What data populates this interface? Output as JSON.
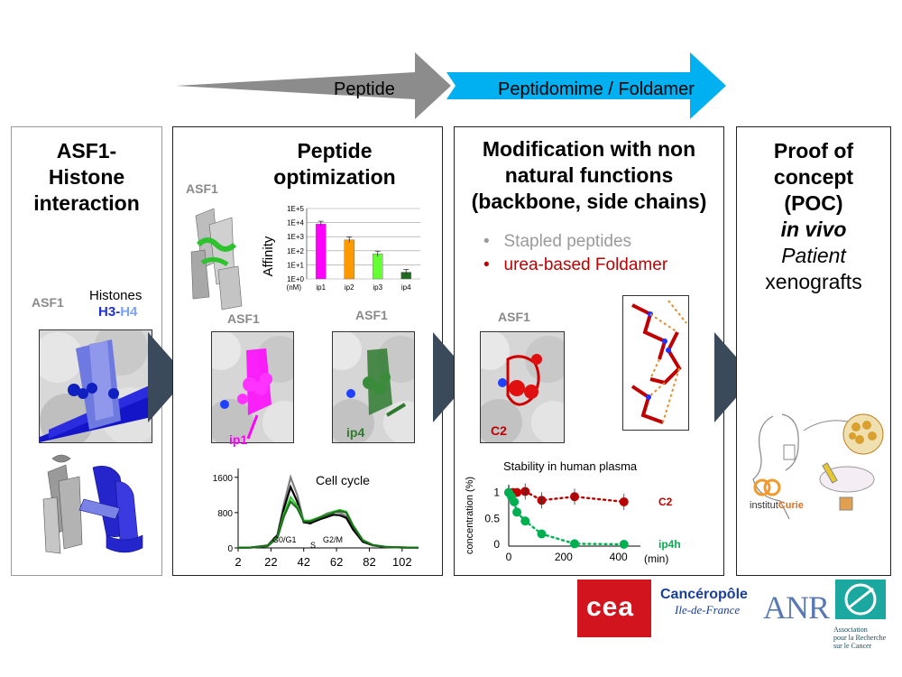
{
  "arrows": {
    "peptide": "Peptide",
    "peptidomimetic": "Peptidomime / Foldamer"
  },
  "panel1": {
    "title": "ASF1-\nHistone\ninteraction",
    "asf1_label": "ASF1",
    "histones_label": "Histones",
    "h3": "H3",
    "dash": "-",
    "h4": "H4"
  },
  "panel2": {
    "title": "Peptide\noptimization",
    "asf1_top": "ASF1",
    "asf1_left": "ASF1",
    "asf1_right": "ASF1",
    "ip1_label": "ip1",
    "ip4_label": "ip4"
  },
  "panel3": {
    "title": "Modification with non\nnatural functions\n(backbone, side chains)",
    "bullets": [
      {
        "text": "Stapled peptides",
        "color": "#9a9a9a"
      },
      {
        "text": "urea-based Foldamer",
        "color": "#c00000"
      }
    ],
    "asf1_label": "ASF1",
    "c2_label": "C2"
  },
  "panel4": {
    "line1": "Proof of",
    "line2": "concept",
    "line3": "(POC)",
    "line4": "in vivo",
    "line5": "Patient",
    "line6": "xenografts",
    "curie_text": "institut",
    "curie_bold": "Curie"
  },
  "logos": {
    "cea": "cea",
    "canceropole_1": "Cancéropôle",
    "canceropole_2": "Ile-de-France",
    "anr": "ANR",
    "arc_1": "Association",
    "arc_2": "pour la Recherche",
    "arc_3": "sur le Cancer"
  },
  "colors": {
    "arrow_gray": "#8c8c8c",
    "arrow_blue": "#00b0f0",
    "chevron": "#3b4a5a",
    "magenta": "#ff00ff",
    "orange": "#ff9900",
    "green_light": "#66ff33",
    "green_dark": "#1e6e1e",
    "red": "#c00000",
    "green_plasma": "#00b050"
  },
  "chart_data": [
    {
      "type": "bar",
      "ylabel": "Affinity",
      "yunit": "(nM)",
      "log_scale": true,
      "yticks": [
        "1E+0",
        "1E+1",
        "1E+2",
        "1E+3",
        "1E+4",
        "1E+5"
      ],
      "categories": [
        "ip1",
        "ip2",
        "ip3",
        "ip4"
      ],
      "values": [
        8000,
        600,
        60,
        3
      ],
      "colors": [
        "#ff00ff",
        "#ff9900",
        "#66ff33",
        "#1e6e1e"
      ],
      "ylim": [
        1,
        100000
      ]
    },
    {
      "type": "line",
      "title": "Cell cycle",
      "xticks": [
        2,
        22,
        42,
        62,
        82,
        102
      ],
      "yticks": [
        0,
        800,
        1600
      ],
      "xlim": [
        2,
        112
      ],
      "ylim": [
        0,
        1800
      ],
      "annotations": [
        "G0/G1",
        "S",
        "G2/M"
      ],
      "series": [
        {
          "color": "#808080",
          "x": [
            2,
            10,
            20,
            26,
            30,
            34,
            38,
            42,
            46,
            52,
            56,
            60,
            64,
            68,
            72,
            78,
            84,
            92,
            102,
            112
          ],
          "y": [
            5,
            10,
            60,
            300,
            1000,
            1600,
            1200,
            600,
            550,
            700,
            780,
            820,
            800,
            720,
            450,
            150,
            60,
            20,
            10,
            5
          ]
        },
        {
          "color": "#000000",
          "x": [
            2,
            10,
            20,
            26,
            30,
            34,
            38,
            42,
            46,
            52,
            56,
            60,
            64,
            68,
            72,
            78,
            84,
            92,
            102,
            112
          ],
          "y": [
            5,
            10,
            50,
            280,
            900,
            1380,
            1050,
            580,
            560,
            650,
            700,
            750,
            740,
            680,
            420,
            140,
            60,
            20,
            10,
            5
          ]
        },
        {
          "color": "#33cc33",
          "x": [
            2,
            10,
            20,
            26,
            30,
            34,
            38,
            42,
            46,
            52,
            56,
            60,
            64,
            68,
            72,
            78,
            84,
            92,
            102,
            112
          ],
          "y": [
            5,
            10,
            45,
            250,
            780,
            1150,
            950,
            620,
            620,
            700,
            750,
            820,
            860,
            820,
            520,
            180,
            70,
            25,
            10,
            5
          ]
        },
        {
          "color": "#1e6e1e",
          "x": [
            2,
            10,
            20,
            26,
            30,
            34,
            38,
            42,
            46,
            52,
            56,
            60,
            64,
            68,
            72,
            78,
            84,
            92,
            102,
            112
          ],
          "y": [
            5,
            10,
            40,
            230,
            720,
            1050,
            900,
            600,
            600,
            690,
            740,
            800,
            840,
            800,
            500,
            170,
            65,
            22,
            10,
            5
          ]
        }
      ]
    },
    {
      "type": "scatter",
      "title": "Stability in human plasma",
      "ylabel": "concentration (%)",
      "xlabel": "(min)",
      "xticks": [
        0,
        200,
        400
      ],
      "yticks": [
        0,
        0.5,
        1
      ],
      "xlim": [
        0,
        480
      ],
      "ylim": [
        0,
        1.15
      ],
      "series": [
        {
          "name": "C2",
          "color": "#c00000",
          "x": [
            0,
            15,
            30,
            60,
            120,
            240,
            420
          ],
          "y": [
            1.0,
            1.0,
            1.0,
            1.02,
            0.85,
            0.92,
            0.82
          ]
        },
        {
          "name": "ip4h",
          "color": "#00b050",
          "x": [
            0,
            10,
            20,
            30,
            60,
            120,
            240,
            420
          ],
          "y": [
            1.0,
            0.92,
            0.82,
            0.62,
            0.45,
            0.2,
            0.01,
            0.0
          ]
        }
      ]
    }
  ]
}
